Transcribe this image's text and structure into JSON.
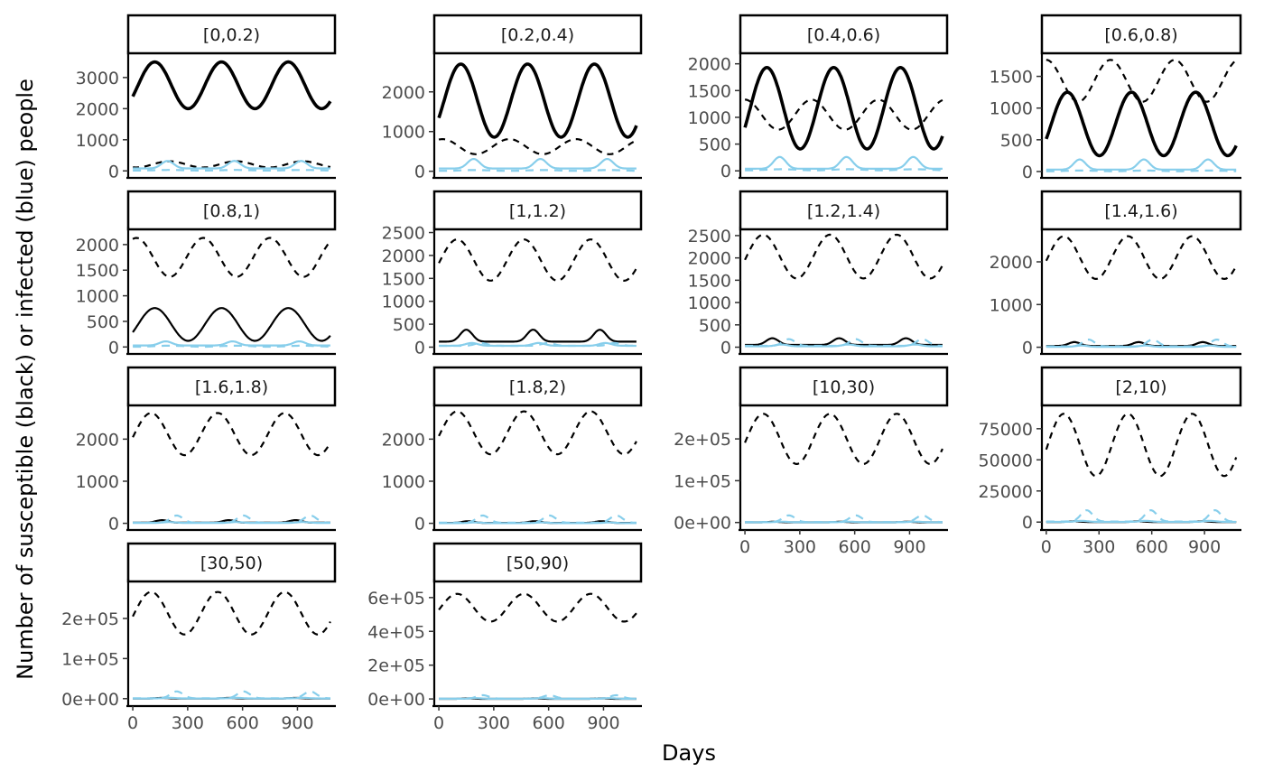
{
  "figure": {
    "ylabel": "Number of susceptible (black) or infected (blue) people",
    "xlabel": "Days"
  },
  "chart_data": {
    "type": "line",
    "layout": "facet grid, 4 columns",
    "xlim": [
      -30,
      1110
    ],
    "x_ticks": [
      0,
      300,
      600,
      900
    ],
    "grid": false,
    "series_styles": {
      "susceptible_solid": "black solid line",
      "susceptible_dashed": "black dashed line",
      "infected_solid": "light blue solid line",
      "infected_dashed": "light blue dashed line"
    },
    "colors": {
      "susceptible": "#000000",
      "infected": "#87ceeb",
      "axis": "#000000",
      "tick_text": "#4d4d4d"
    },
    "panels": [
      {
        "label": "[0,0.2)",
        "ylim": [
          -50,
          3750
        ],
        "y_ticks": [
          0,
          1000,
          2000,
          3000
        ],
        "y_tick_labels": [
          "0",
          "1000",
          "2000",
          "3000"
        ],
        "thick": true,
        "series": [
          {
            "key": "susceptible_solid",
            "mean": 2750,
            "amp": 750,
            "peak": 120
          },
          {
            "key": "susceptible_dashed",
            "mean": 210,
            "amp": 100,
            "peak": 200
          },
          {
            "key": "infected_solid",
            "mean": 80,
            "amp": 240,
            "peak": 190,
            "pulse": true
          },
          {
            "key": "infected_dashed",
            "mean": 20,
            "amp": 10,
            "peak": 200
          }
        ]
      },
      {
        "label": "[0.2,0.4)",
        "ylim": [
          -30,
          2950
        ],
        "y_ticks": [
          0,
          1000,
          2000
        ],
        "y_tick_labels": [
          "0",
          "1000",
          "2000"
        ],
        "thick": true,
        "series": [
          {
            "key": "susceptible_solid",
            "mean": 1780,
            "amp": 920,
            "peak": 120
          },
          {
            "key": "susceptible_dashed",
            "mean": 620,
            "amp": 190,
            "peak": 20
          },
          {
            "key": "infected_solid",
            "mean": 70,
            "amp": 240,
            "peak": 190,
            "pulse": true
          },
          {
            "key": "infected_dashed",
            "mean": 20,
            "amp": 10,
            "peak": 200
          }
        ]
      },
      {
        "label": "[0.4,0.6)",
        "ylim": [
          -30,
          2180
        ],
        "y_ticks": [
          0,
          500,
          1000,
          1500,
          2000
        ],
        "y_tick_labels": [
          "0",
          "500",
          "1000",
          "1500",
          "2000"
        ],
        "thick": true,
        "series": [
          {
            "key": "susceptible_solid",
            "mean": 1170,
            "amp": 760,
            "peak": 120
          },
          {
            "key": "susceptible_dashed",
            "mean": 1050,
            "amp": 280,
            "peak": 0
          },
          {
            "key": "infected_solid",
            "mean": 40,
            "amp": 220,
            "peak": 190,
            "pulse": true
          },
          {
            "key": "infected_dashed",
            "mean": 20,
            "amp": 10,
            "peak": 200
          }
        ]
      },
      {
        "label": "[0.6,0.8)",
        "ylim": [
          -15,
          1850
        ],
        "y_ticks": [
          0,
          500,
          1000,
          1500
        ],
        "y_tick_labels": [
          "0",
          "500",
          "1000",
          "1500"
        ],
        "thick": true,
        "series": [
          {
            "key": "susceptible_solid",
            "mean": 750,
            "amp": 500,
            "peak": 120
          },
          {
            "key": "susceptible_dashed",
            "mean": 1430,
            "amp": 330,
            "peak": 0
          },
          {
            "key": "infected_solid",
            "mean": 30,
            "amp": 160,
            "peak": 190,
            "pulse": true
          },
          {
            "key": "infected_dashed",
            "mean": 10,
            "amp": 5,
            "peak": 200
          }
        ]
      },
      {
        "label": "[0.8,1)",
        "ylim": [
          -30,
          2280
        ],
        "y_ticks": [
          0,
          500,
          1000,
          1500,
          2000
        ],
        "y_tick_labels": [
          "0",
          "500",
          "1000",
          "1500",
          "2000"
        ],
        "thick": false,
        "series": [
          {
            "key": "susceptible_solid",
            "mean": 440,
            "amp": 320,
            "peak": 120
          },
          {
            "key": "susceptible_dashed",
            "mean": 1750,
            "amp": 380,
            "peak": 20
          },
          {
            "key": "infected_solid",
            "mean": 30,
            "amp": 80,
            "peak": 180,
            "pulse": true
          },
          {
            "key": "infected_dashed",
            "mean": 15,
            "amp": 10,
            "peak": 200
          }
        ]
      },
      {
        "label": "[1,1.2)",
        "ylim": [
          -30,
          2550
        ],
        "y_ticks": [
          0,
          500,
          1000,
          1500,
          2000,
          2500
        ],
        "y_tick_labels": [
          "0",
          "500",
          "1000",
          "1500",
          "2000",
          "2500"
        ],
        "thick": false,
        "series": [
          {
            "key": "susceptible_solid",
            "mean": 120,
            "amp": 260,
            "peak": 150,
            "pulse": true
          },
          {
            "key": "susceptible_dashed",
            "mean": 1900,
            "amp": 450,
            "peak": 100
          },
          {
            "key": "infected_solid",
            "mean": 30,
            "amp": 60,
            "peak": 180,
            "pulse": true
          },
          {
            "key": "infected_dashed",
            "mean": 30,
            "amp": 60,
            "peak": 230,
            "pulse": true
          }
        ]
      },
      {
        "label": "[1.2,1.4)",
        "ylim": [
          -30,
          2620
        ],
        "y_ticks": [
          0,
          500,
          1000,
          1500,
          2000,
          2500
        ],
        "y_tick_labels": [
          "0",
          "500",
          "1000",
          "1500",
          "2000",
          "2500"
        ],
        "thick": false,
        "series": [
          {
            "key": "susceptible_solid",
            "mean": 50,
            "amp": 150,
            "peak": 150,
            "pulse": true
          },
          {
            "key": "susceptible_dashed",
            "mean": 2030,
            "amp": 490,
            "peak": 100
          },
          {
            "key": "infected_solid",
            "mean": 20,
            "amp": 40,
            "peak": 200,
            "pulse": true
          },
          {
            "key": "infected_dashed",
            "mean": 30,
            "amp": 150,
            "peak": 240,
            "pulse": true
          }
        ]
      },
      {
        "label": "[1.4,1.6)",
        "ylim": [
          -30,
          2740
        ],
        "y_ticks": [
          0,
          1000,
          2000
        ],
        "y_tick_labels": [
          "0",
          "1000",
          "2000"
        ],
        "thick": false,
        "series": [
          {
            "key": "susceptible_solid",
            "mean": 30,
            "amp": 90,
            "peak": 160,
            "pulse": true
          },
          {
            "key": "susceptible_dashed",
            "mean": 2100,
            "amp": 500,
            "peak": 100
          },
          {
            "key": "infected_solid",
            "mean": 10,
            "amp": 30,
            "peak": 200,
            "pulse": true
          },
          {
            "key": "infected_dashed",
            "mean": 20,
            "amp": 160,
            "peak": 240,
            "pulse": true
          }
        ]
      },
      {
        "label": "[1.6,1.8)",
        "ylim": [
          -30,
          2780
        ],
        "y_ticks": [
          0,
          1000,
          2000
        ],
        "y_tick_labels": [
          "0",
          "1000",
          "2000"
        ],
        "thick": false,
        "series": [
          {
            "key": "susceptible_solid",
            "mean": 15,
            "amp": 60,
            "peak": 160,
            "pulse": true
          },
          {
            "key": "susceptible_dashed",
            "mean": 2120,
            "amp": 500,
            "peak": 100
          },
          {
            "key": "infected_solid",
            "mean": 10,
            "amp": 20,
            "peak": 200,
            "pulse": true
          },
          {
            "key": "infected_dashed",
            "mean": 15,
            "amp": 170,
            "peak": 240,
            "pulse": true
          }
        ]
      },
      {
        "label": "[1.8,2)",
        "ylim": [
          -30,
          2780
        ],
        "y_ticks": [
          0,
          1000,
          2000
        ],
        "y_tick_labels": [
          "0",
          "1000",
          "2000"
        ],
        "thick": false,
        "series": [
          {
            "key": "susceptible_solid",
            "mean": 10,
            "amp": 40,
            "peak": 160,
            "pulse": true
          },
          {
            "key": "susceptible_dashed",
            "mean": 2150,
            "amp": 510,
            "peak": 100
          },
          {
            "key": "infected_solid",
            "mean": 5,
            "amp": 15,
            "peak": 200,
            "pulse": true
          },
          {
            "key": "infected_dashed",
            "mean": 15,
            "amp": 170,
            "peak": 240,
            "pulse": true
          }
        ]
      },
      {
        "label": "[10,30)",
        "ylim": [
          -5000,
          278000
        ],
        "y_ticks": [
          0,
          100000,
          200000
        ],
        "y_tick_labels": [
          "0e+00",
          "1e+05",
          "2e+05"
        ],
        "thick": false,
        "series": [
          {
            "key": "susceptible_solid",
            "mean": 300,
            "amp": 1500,
            "peak": 160,
            "pulse": true
          },
          {
            "key": "susceptible_dashed",
            "mean": 200000,
            "amp": 60000,
            "peak": 100
          },
          {
            "key": "infected_solid",
            "mean": 500,
            "amp": 1500,
            "peak": 200,
            "pulse": true
          },
          {
            "key": "infected_dashed",
            "mean": 1000,
            "amp": 16000,
            "peak": 240,
            "pulse": true
          }
        ]
      },
      {
        "label": "[2,10)",
        "ylim": [
          -2000,
          93000
        ],
        "y_ticks": [
          0,
          25000,
          50000,
          75000
        ],
        "y_tick_labels": [
          "0",
          "25000",
          "50000",
          "75000"
        ],
        "thick": false,
        "series": [
          {
            "key": "susceptible_solid",
            "mean": 100,
            "amp": 500,
            "peak": 160,
            "pulse": true
          },
          {
            "key": "susceptible_dashed",
            "mean": 62000,
            "amp": 25000,
            "peak": 100
          },
          {
            "key": "infected_solid",
            "mean": 200,
            "amp": 800,
            "peak": 200,
            "pulse": true
          },
          {
            "key": "infected_dashed",
            "mean": 500,
            "amp": 9000,
            "peak": 230,
            "pulse": true
          }
        ]
      },
      {
        "label": "[30,50)",
        "ylim": [
          -5000,
          290000
        ],
        "y_ticks": [
          0,
          100000,
          200000
        ],
        "y_tick_labels": [
          "0e+00",
          "1e+05",
          "2e+05"
        ],
        "thick": false,
        "series": [
          {
            "key": "susceptible_solid",
            "mean": 300,
            "amp": 1500,
            "peak": 160,
            "pulse": true
          },
          {
            "key": "susceptible_dashed",
            "mean": 213000,
            "amp": 53000,
            "peak": 100
          },
          {
            "key": "infected_solid",
            "mean": 500,
            "amp": 1500,
            "peak": 200,
            "pulse": true
          },
          {
            "key": "infected_dashed",
            "mean": 1000,
            "amp": 17000,
            "peak": 240,
            "pulse": true
          }
        ]
      },
      {
        "label": "[50,90)",
        "ylim": [
          -10000,
          690000
        ],
        "y_ticks": [
          0,
          200000,
          400000,
          600000
        ],
        "y_tick_labels": [
          "0e+00",
          "2e+05",
          "4e+05",
          "6e+05"
        ],
        "thick": false,
        "series": [
          {
            "key": "susceptible_solid",
            "mean": 500,
            "amp": 3000,
            "peak": 160,
            "pulse": true
          },
          {
            "key": "susceptible_dashed",
            "mean": 540000,
            "amp": 82000,
            "peak": 100
          },
          {
            "key": "infected_solid",
            "mean": 1000,
            "amp": 4000,
            "peak": 200,
            "pulse": true
          },
          {
            "key": "infected_dashed",
            "mean": 2000,
            "amp": 20000,
            "peak": 240,
            "pulse": true
          }
        ]
      }
    ]
  }
}
